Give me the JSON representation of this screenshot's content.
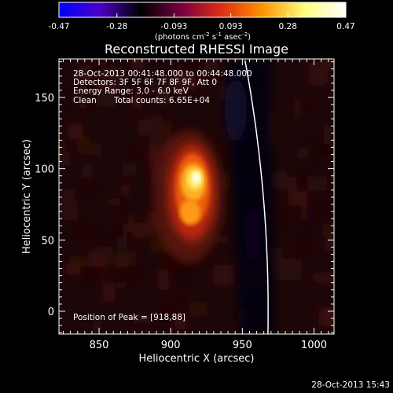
{
  "chart_data": {
    "type": "heatmap",
    "title": "Reconstructed RHESSI Image",
    "xlabel": "Heliocentric X (arcsec)",
    "ylabel": "Heliocentric Y (arcsec)",
    "xlim": [
      822,
      1014
    ],
    "ylim": [
      -16,
      177
    ],
    "x_ticks": [
      850,
      900,
      950,
      1000
    ],
    "y_ticks": [
      0,
      50,
      100,
      150
    ],
    "colorbar": {
      "min": -0.47,
      "max": 0.47,
      "ticks": [
        "-0.47",
        "-0.28",
        "-0.093",
        "0.093",
        "0.28",
        "0.47"
      ],
      "unit_parts": [
        "(photons cm",
        "-2",
        " s",
        "-1",
        " asec",
        "-2",
        ")"
      ],
      "colormap": [
        "#0000ff",
        "#4b00c8",
        "#000000",
        "#780040",
        "#e03010",
        "#ff9600",
        "#ffff80",
        "#ffffff"
      ]
    },
    "annotations": {
      "line1": "28-Oct-2013 00:41:48.000 to 00:44:48.000",
      "line2": "Detectors: 3F 5F 6F 7F 8F 9F, Att 0",
      "line3": "Energy Range: 3.0 - 6.0 keV",
      "line4_a": "Clean",
      "line4_b": "Total counts: 6.65E+04",
      "peak": "Position of Peak = [918,88]"
    },
    "peak_position": [
      918,
      88
    ],
    "limb_color": "#ffffff",
    "footer_date": "28-Oct-2013 15:43"
  }
}
